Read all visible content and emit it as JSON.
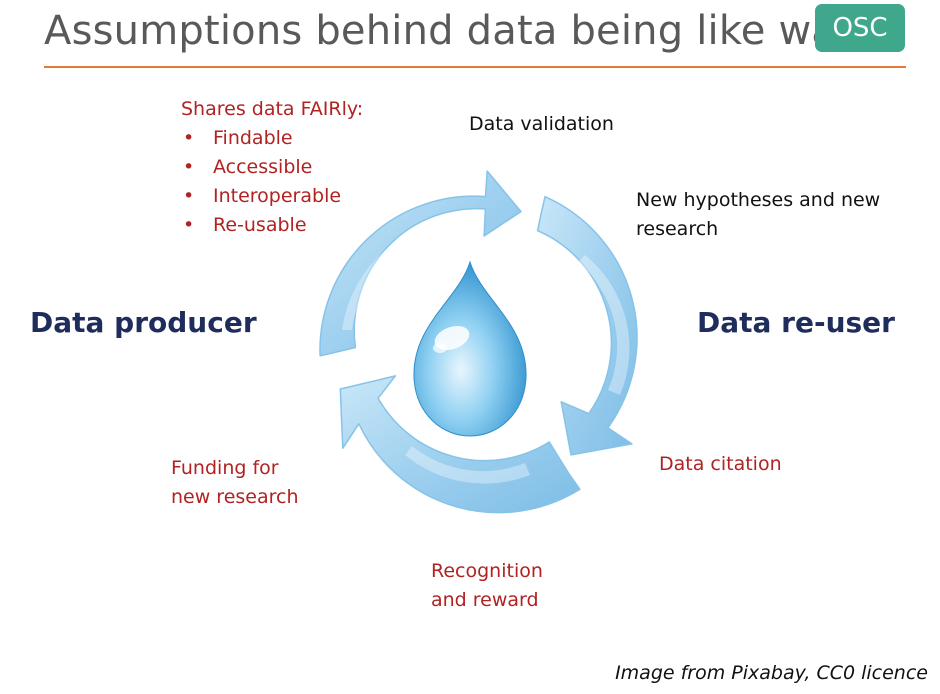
{
  "title": "Assumptions behind data being like water",
  "badge": "OSC",
  "fair": {
    "heading": "Shares data FAIRly:",
    "items": [
      "Findable",
      "Accessible",
      "Interoperable",
      "Re-usable"
    ]
  },
  "roles": {
    "producer": "Data producer",
    "reuser": "Data re-user"
  },
  "steps": {
    "validation": "Data validation",
    "hypotheses_line1": "New hypotheses and new",
    "hypotheses_line2": "research",
    "citation": "Data citation",
    "recognition_line1": "Recognition",
    "recognition_line2": "and reward",
    "funding_line1": "Funding for",
    "funding_line2": "new research"
  },
  "credit": "Image from Pixabay, CC0 licence",
  "colors": {
    "accent_rule": "#e07b39",
    "badge": "#3fa88c",
    "red_text": "#b22222",
    "role_text": "#1f2d5c",
    "arrow": "#9fd0ef"
  }
}
